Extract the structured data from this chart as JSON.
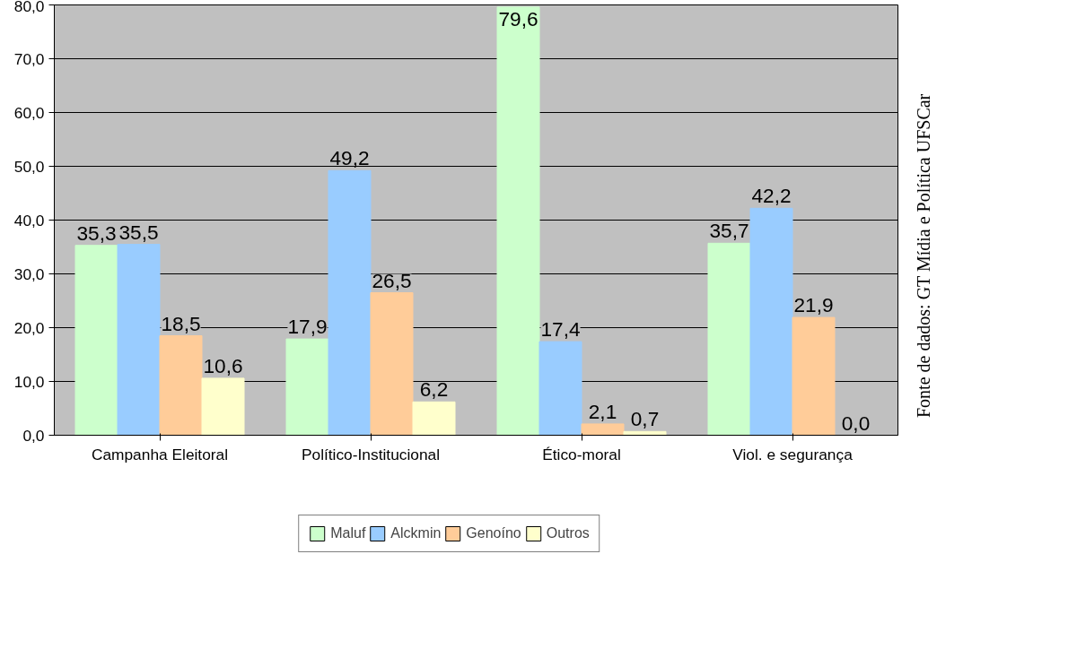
{
  "chart_data": {
    "type": "bar",
    "categories": [
      "Campanha Eleitoral",
      "Político-Institucional",
      "Ético-moral",
      "Viol. e segurança"
    ],
    "series": [
      {
        "name": "Maluf",
        "color": "#ccffcc",
        "values": [
          35.3,
          17.9,
          79.6,
          35.7
        ],
        "value_labels": [
          "35,3",
          "17,9",
          "79,6",
          "35,7"
        ]
      },
      {
        "name": "Alckmin",
        "color": "#99ccff",
        "values": [
          35.5,
          49.2,
          17.4,
          42.2
        ],
        "value_labels": [
          "35,5",
          "49,2",
          "17,4",
          "42,2"
        ]
      },
      {
        "name": "Genoíno",
        "color": "#ffcc99",
        "values": [
          18.5,
          26.5,
          2.1,
          21.9
        ],
        "value_labels": [
          "18,5",
          "26,5",
          "2,1",
          "21,9"
        ]
      },
      {
        "name": "Outros",
        "color": "#ffffcc",
        "values": [
          10.6,
          6.2,
          0.7,
          0.0
        ],
        "value_labels": [
          "10,6",
          "6,2",
          "0,7",
          "0,0"
        ]
      }
    ],
    "ylim": [
      0,
      80
    ],
    "yticks": [
      {
        "value": 0,
        "label": "0,0"
      },
      {
        "value": 10,
        "label": "10,0"
      },
      {
        "value": 20,
        "label": "20,0"
      },
      {
        "value": 30,
        "label": "30,0"
      },
      {
        "value": 40,
        "label": "40,0"
      },
      {
        "value": 50,
        "label": "50,0"
      },
      {
        "value": 60,
        "label": "60,0"
      },
      {
        "value": 70,
        "label": "70,0"
      },
      {
        "value": 80,
        "label": "80,0"
      }
    ],
    "grid": "y",
    "legend": "bottom",
    "annotations": [
      "Fonte de dados: GT Mídia e Política UFSCar"
    ]
  }
}
